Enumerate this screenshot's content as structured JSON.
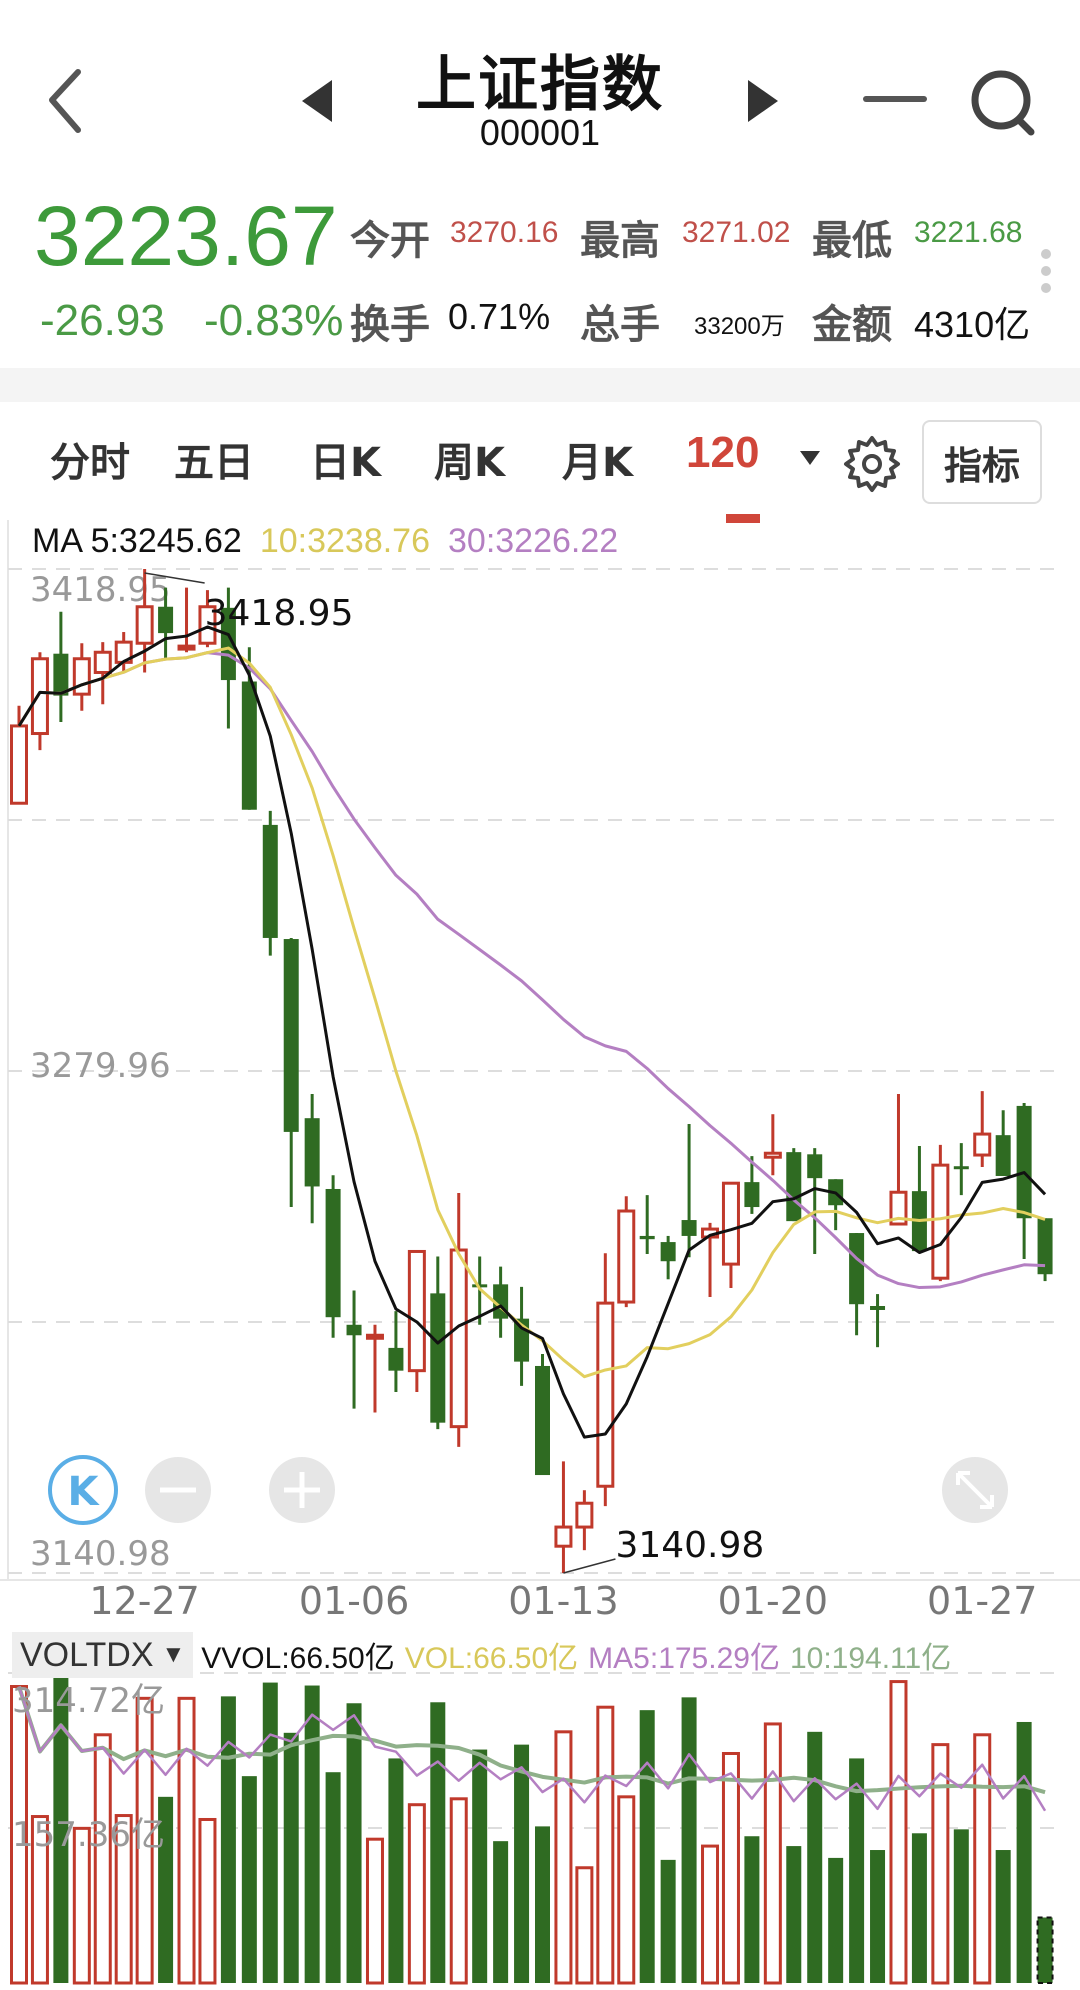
{
  "nav": {
    "title": "上证指数",
    "code": "000001",
    "back_icon": "chevron-left-icon",
    "prev_icon": "triangle-left-icon",
    "next_icon": "triangle-right-icon",
    "minus_icon": "minus-icon",
    "search_icon": "search-icon"
  },
  "quote": {
    "price": "3223.67",
    "change": "-26.93",
    "change_pct": "-0.83%",
    "open_label": "今开",
    "open": "3270.16",
    "high_label": "最高",
    "high": "3271.02",
    "low_label": "最低",
    "low": "3221.68",
    "turnover_label": "换手",
    "turnover": "0.71%",
    "volume_label": "总手",
    "volume": "33200万",
    "amount_label": "金额",
    "amount": "4310亿"
  },
  "tabs": [
    {
      "label": "分时"
    },
    {
      "label": "五日"
    },
    {
      "label": "日K"
    },
    {
      "label": "周K"
    },
    {
      "label": "月K"
    },
    {
      "label": "120",
      "active": true
    }
  ],
  "indicator_button": "指标",
  "ma_legend": {
    "ma5": "MA  5:3245.62",
    "ma10": "10:3238.76",
    "ma30": "30:3226.22"
  },
  "vol_legend": {
    "selector": "VOLTDX",
    "vvol": "VVOL:66.50亿",
    "vol": "VOL:66.50亿",
    "ma5": "MA5:175.29亿",
    "ma10": "10:194.11亿"
  },
  "colors": {
    "up": "#c0392b",
    "down": "#2f6b22",
    "price_down": "#3d9a3a",
    "ma5": "#111111",
    "ma10": "#e2cf5e",
    "ma30": "#b47fc2",
    "vol_ma5": "#b47fc2",
    "vol_ma10": "#8fb08a",
    "accent": "#d0463a"
  },
  "chart_data": [
    {
      "type": "candlestick",
      "y_axis_labels": [
        "3418.95",
        "3279.96",
        "3140.98"
      ],
      "ylim": [
        3140.98,
        3418.95
      ],
      "x_tick_labels": [
        {
          "index": 6,
          "label": "12-27"
        },
        {
          "index": 16,
          "label": "01-06"
        },
        {
          "index": 26,
          "label": "01-13"
        },
        {
          "index": 36,
          "label": "01-20"
        },
        {
          "index": 46,
          "label": "01-27"
        }
      ],
      "max_annotation": {
        "index": 6,
        "label": "3418.95"
      },
      "min_annotation": {
        "index": 26,
        "label": "3140.98"
      },
      "ma_periods": [
        5,
        10,
        30
      ],
      "ohlc": [
        [
          3354.1,
          3381.1,
          3354.1,
          3375.5
        ],
        [
          3373.4,
          3395.9,
          3368.8,
          3394.1
        ],
        [
          3395.5,
          3407.1,
          3376.6,
          3383.9
        ],
        [
          3384.3,
          3398.4,
          3379.7,
          3394.1
        ],
        [
          3390.3,
          3398.7,
          3381.5,
          3395.9
        ],
        [
          3393.1,
          3401.5,
          3390.3,
          3398.7
        ],
        [
          3398.4,
          3418.95,
          3390.3,
          3408.5
        ],
        [
          3408.5,
          3413.8,
          3394.1,
          3401.2
        ],
        [
          3397.0,
          3413.8,
          3395.9,
          3397.6
        ],
        [
          3398.4,
          3413.1,
          3397.3,
          3408.5
        ],
        [
          3408.2,
          3413.8,
          3374.8,
          3388.2
        ],
        [
          3387.8,
          3397.3,
          3352.3,
          3352.3
        ],
        [
          3348.1,
          3352.0,
          3311.9,
          3316.8
        ],
        [
          3316.5,
          3316.8,
          3242.3,
          3263.1
        ],
        [
          3266.9,
          3273.6,
          3237.8,
          3248.0
        ],
        [
          3247.3,
          3251.1,
          3206.1,
          3211.8
        ],
        [
          3209.7,
          3219.2,
          3186.5,
          3206.8
        ],
        [
          3206.1,
          3209.7,
          3185.4,
          3206.8
        ],
        [
          3203.3,
          3213.5,
          3191.1,
          3197.0
        ],
        [
          3197.0,
          3230.0,
          3191.1,
          3230.0
        ],
        [
          3218.4,
          3228.6,
          3180.8,
          3182.6
        ],
        [
          3181.5,
          3246.2,
          3175.9,
          3230.4
        ],
        [
          3220.9,
          3228.6,
          3209.7,
          3220.2
        ],
        [
          3220.9,
          3225.8,
          3206.1,
          3211.4
        ],
        [
          3211.4,
          3220.2,
          3192.8,
          3199.5
        ],
        [
          3198.3,
          3201.6,
          3168.1,
          3168.1
        ],
        [
          3148.4,
          3171.9,
          3140.98,
          3153.7
        ],
        [
          3153.7,
          3163.9,
          3147.3,
          3160.3
        ],
        [
          3165.0,
          3229.5,
          3159.5,
          3215.7
        ],
        [
          3216.0,
          3245.3,
          3214.6,
          3241.2
        ],
        [
          3234.3,
          3245.6,
          3229.3,
          3233.4
        ],
        [
          3232.6,
          3234.3,
          3222.3,
          3227.3
        ],
        [
          3238.7,
          3265.3,
          3228.4,
          3234.3
        ],
        [
          3234.0,
          3237.9,
          3217.4,
          3236.2
        ],
        [
          3226.5,
          3248.9,
          3219.9,
          3248.9
        ],
        [
          3249.2,
          3256.4,
          3240.4,
          3242.3
        ],
        [
          3256.1,
          3268.0,
          3251.1,
          3257.2
        ],
        [
          3257.5,
          3258.6,
          3238.4,
          3238.4
        ],
        [
          3256.9,
          3258.6,
          3229.3,
          3250.3
        ],
        [
          3250.0,
          3250.0,
          3235.9,
          3242.8
        ],
        [
          3235.1,
          3235.1,
          3206.8,
          3215.4
        ],
        [
          3214.9,
          3218.2,
          3203.5,
          3213.8
        ],
        [
          3237.6,
          3273.6,
          3237.6,
          3246.4
        ],
        [
          3246.7,
          3259.2,
          3230.1,
          3230.1
        ],
        [
          3222.6,
          3259.5,
          3221.8,
          3253.9
        ],
        [
          3253.6,
          3260.0,
          3245.6,
          3252.8
        ],
        [
          3256.7,
          3274.4,
          3253.4,
          3262.5
        ],
        [
          3262.2,
          3269.1,
          3250.9,
          3250.9
        ],
        [
          3270.3,
          3271.1,
          3227.9,
          3239.2
        ],
        [
          3239.2,
          3239.2,
          3221.8,
          3223.7
        ]
      ]
    },
    {
      "type": "bar",
      "unit": "亿",
      "y_axis_labels": [
        "314.72亿",
        "157.36亿"
      ],
      "ylim": [
        0,
        314.72
      ],
      "ma_periods": [
        5,
        10
      ],
      "values": [
        301,
        169,
        315,
        157,
        252,
        170,
        289,
        189,
        289,
        166,
        291,
        210,
        305,
        254,
        302,
        214,
        284,
        146,
        228,
        181,
        285,
        187,
        237,
        144,
        242,
        159,
        255,
        117,
        280,
        189,
        277,
        125,
        290,
        139,
        233,
        149,
        263,
        139,
        255,
        127,
        228,
        135,
        306,
        152,
        242,
        156,
        252,
        135,
        265,
        66.5
      ]
    }
  ]
}
